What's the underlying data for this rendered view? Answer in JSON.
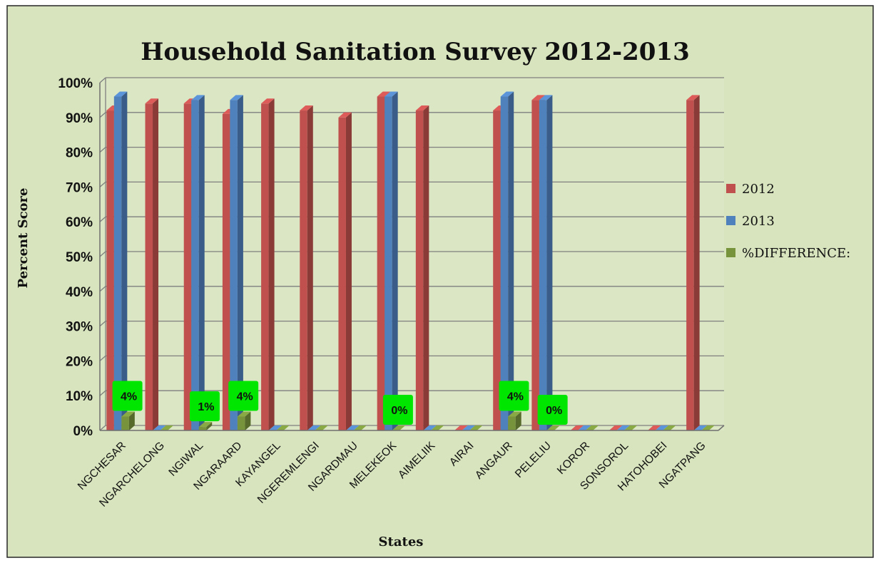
{
  "chart_data": {
    "type": "bar",
    "title": "Household Sanitation Survey 2012-2013",
    "xlabel": "States",
    "ylabel": "Percent Score",
    "ylim": [
      0,
      100
    ],
    "yticks": [
      "0%",
      "10%",
      "20%",
      "30%",
      "40%",
      "50%",
      "60%",
      "70%",
      "80%",
      "90%",
      "100%"
    ],
    "grid": true,
    "legend_position": "right",
    "categories": [
      "NGCHESAR",
      "NGARCHELONG",
      "NGIWAL",
      "NGARAARD",
      "KAYANGEL",
      "NGEREMLENGI",
      "NGARDMAU",
      "MELEKEOK",
      "AIMELIIK",
      "AIRAI",
      "ANGAUR",
      "PELELIU",
      "KOROR",
      "SONSOROL",
      "HATOHOBEI",
      "NGATPANG"
    ],
    "series": [
      {
        "name": "2012",
        "color": "#c0504d",
        "values": [
          92,
          94,
          94,
          91,
          94,
          92,
          90,
          96,
          92,
          0,
          92,
          95,
          0,
          0,
          0,
          95
        ]
      },
      {
        "name": "2013",
        "color": "#4f81bd",
        "values": [
          96,
          0,
          95,
          95,
          0,
          0,
          0,
          96,
          0,
          0,
          96,
          95,
          0,
          0,
          0,
          0
        ]
      },
      {
        "name": "%DIFFERENCE:",
        "color": "#77933c",
        "values": [
          4,
          0,
          1,
          4,
          0,
          0,
          0,
          0,
          0,
          0,
          4,
          0,
          0,
          0,
          0,
          0
        ]
      }
    ],
    "data_labels": [
      {
        "category": "NGCHESAR",
        "series": "%DIFFERENCE:",
        "text": "4%"
      },
      {
        "category": "NGIWAL",
        "series": "%DIFFERENCE:",
        "text": "1%"
      },
      {
        "category": "NGARAARD",
        "series": "%DIFFERENCE:",
        "text": "4%"
      },
      {
        "category": "MELEKEOK",
        "series": "%DIFFERENCE:",
        "text": "0%"
      },
      {
        "category": "ANGAUR",
        "series": "%DIFFERENCE:",
        "text": "4%"
      },
      {
        "category": "PELELIU",
        "series": "%DIFFERENCE:",
        "text": "0%"
      }
    ],
    "colors": {
      "background": "#d7e4bd",
      "label_box": "#00e600"
    }
  }
}
